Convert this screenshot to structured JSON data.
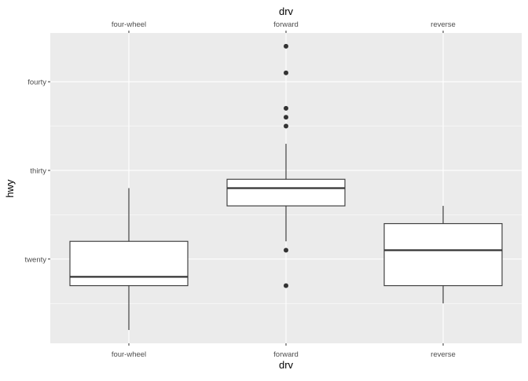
{
  "chart_data": {
    "type": "boxplot",
    "xlabel": "drv",
    "x2label": "drv",
    "ylabel": "hwy",
    "categories": [
      "four-wheel",
      "forward",
      "reverse"
    ],
    "ylim": [
      10.5,
      45.5
    ],
    "yticks": [
      {
        "value": 20,
        "label": "twenty"
      },
      {
        "value": 30,
        "label": "thirty"
      },
      {
        "value": 40,
        "label": "fourty"
      }
    ],
    "minor_grid": [
      15,
      25,
      35
    ],
    "grid": true,
    "boxes": [
      {
        "category": "four-wheel",
        "lower_whisker": 12,
        "q1": 17,
        "median": 18,
        "q3": 22,
        "upper_whisker": 28,
        "outliers": []
      },
      {
        "category": "forward",
        "lower_whisker": 22,
        "q1": 26,
        "median": 28,
        "q3": 29,
        "upper_whisker": 33,
        "outliers": [
          17,
          21,
          35,
          36,
          37,
          41,
          44
        ]
      },
      {
        "category": "reverse",
        "lower_whisker": 15,
        "q1": 17,
        "median": 21,
        "q3": 24,
        "upper_whisker": 26,
        "outliers": []
      }
    ],
    "colors": {
      "panel": "#ebebeb",
      "grid": "#ffffff",
      "box_fill": "#ffffff",
      "line": "#333333"
    }
  }
}
